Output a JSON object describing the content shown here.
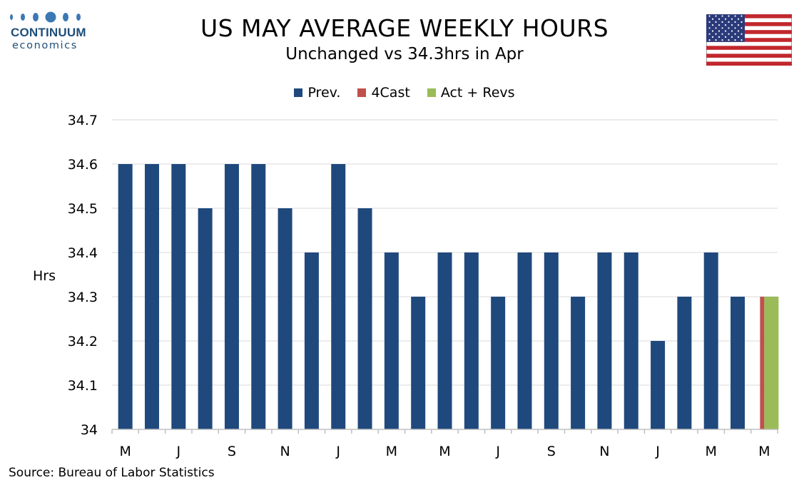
{
  "brand": {
    "name": "CONTINUUM",
    "sub": "economics"
  },
  "header": {
    "title": "US MAY AVERAGE WEEKLY HOURS",
    "subtitle": "Unchanged vs 34.3hrs in Apr"
  },
  "flag_icon": "us-flag-icon",
  "source": "Source: Bureau of Labor Statistics",
  "colors": {
    "prev": "#1f497d",
    "forecast": "#c0504d",
    "actual": "#9bbb59",
    "grid": "#d9d9d9",
    "brand": "#1f4e79"
  },
  "chart_data": {
    "type": "bar",
    "ylabel": "Hrs",
    "xlabel": "",
    "ylim": [
      34.0,
      34.7
    ],
    "yticks": [
      "34",
      "34.1",
      "34.2",
      "34.3",
      "34.4",
      "34.5",
      "34.6",
      "34.7"
    ],
    "grid": true,
    "legend_position": "top-center",
    "legend": [
      "Prev.",
      "4Cast",
      "Act + Revs"
    ],
    "x_tick_labels": [
      "M",
      "J",
      "S",
      "N",
      "J",
      "M",
      "M",
      "J",
      "S",
      "N",
      "J",
      "M",
      "M"
    ],
    "series": [
      {
        "name": "Prev.",
        "values": [
          34.6,
          34.6,
          34.6,
          34.5,
          34.6,
          34.6,
          34.5,
          34.4,
          34.6,
          34.5,
          34.4,
          34.3,
          34.4,
          34.4,
          34.3,
          34.4,
          34.4,
          34.3,
          34.4,
          34.4,
          34.2,
          34.3,
          34.4,
          34.3,
          null
        ]
      },
      {
        "name": "4Cast",
        "values": [
          null,
          null,
          null,
          null,
          null,
          null,
          null,
          null,
          null,
          null,
          null,
          null,
          null,
          null,
          null,
          null,
          null,
          null,
          null,
          null,
          null,
          null,
          null,
          null,
          34.3
        ]
      },
      {
        "name": "Act + Revs",
        "values": [
          null,
          null,
          null,
          null,
          null,
          null,
          null,
          null,
          null,
          null,
          null,
          null,
          null,
          null,
          null,
          null,
          null,
          null,
          null,
          null,
          null,
          null,
          null,
          null,
          34.3
        ]
      }
    ]
  }
}
